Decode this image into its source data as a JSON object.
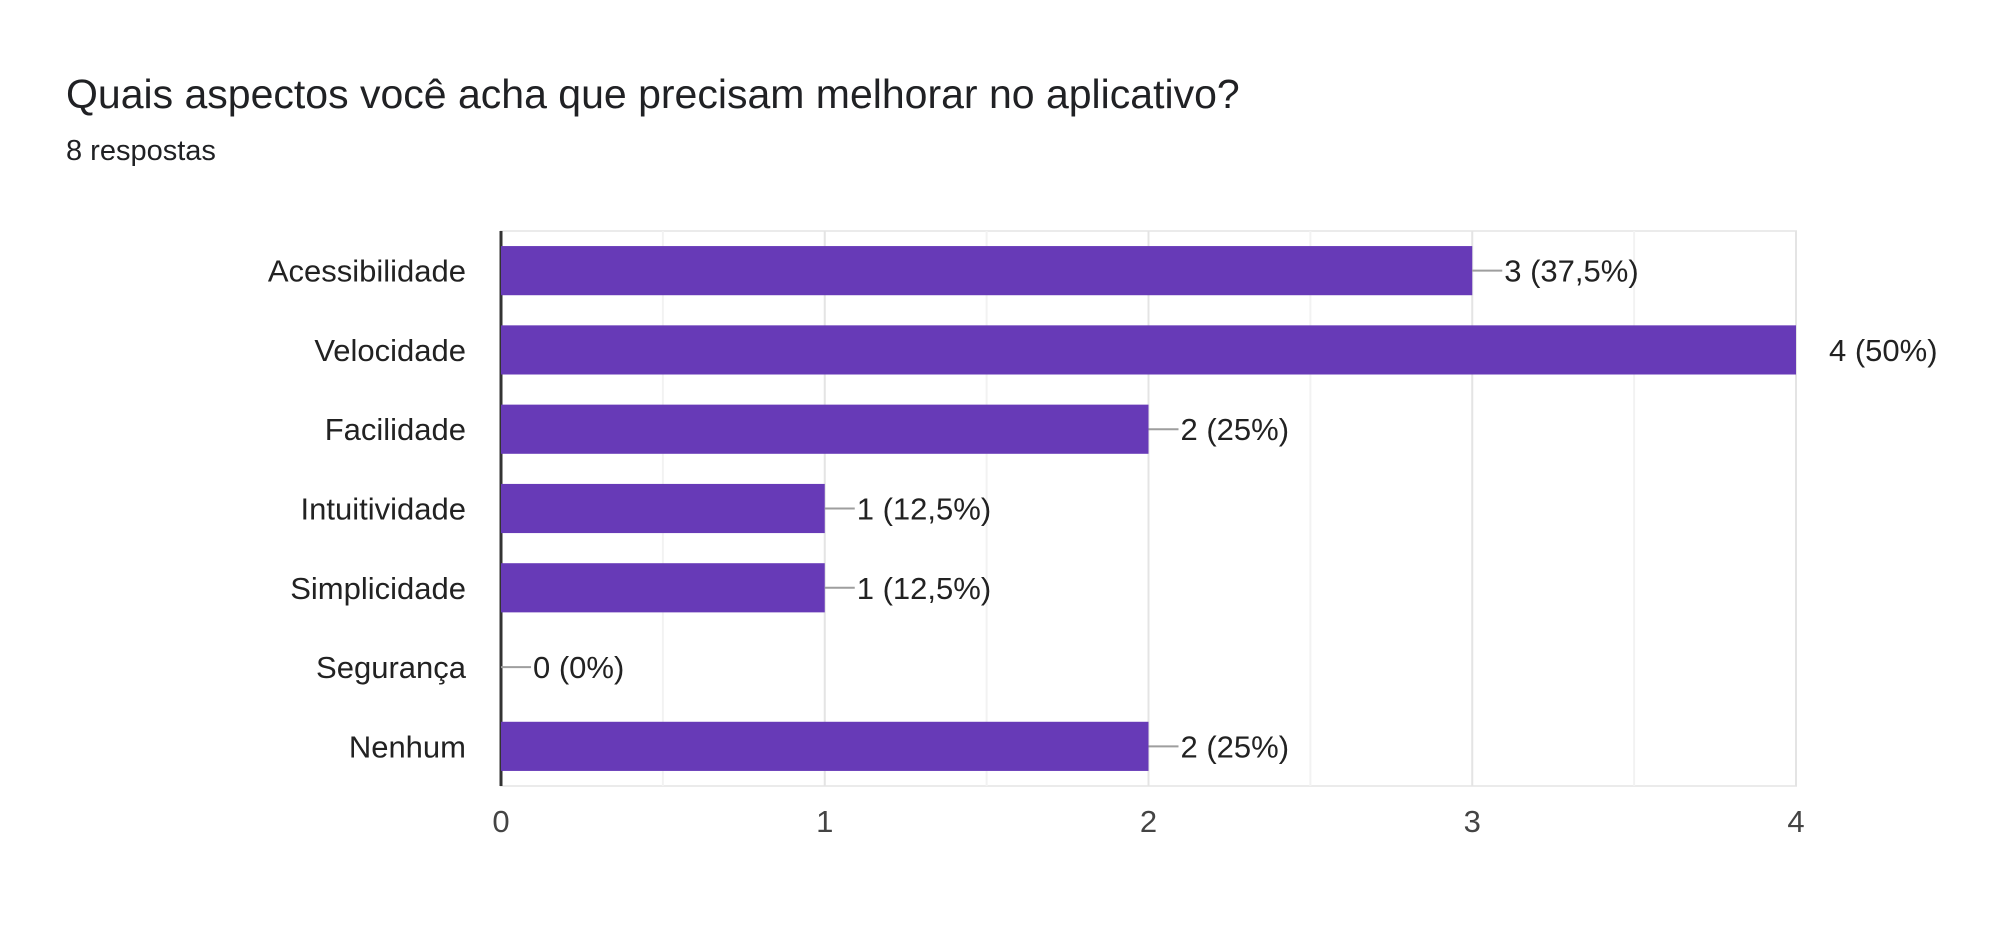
{
  "question": {
    "title": "Quais aspectos você acha que precisam melhorar no aplicativo?",
    "response_count": "8 respostas"
  },
  "colors": {
    "bar": "#673ab7",
    "grid": "#ebebeb",
    "axis": "#333333",
    "leader": "#9e9e9e"
  },
  "chart_data": {
    "type": "bar",
    "orientation": "horizontal",
    "categories": [
      "Acessibilidade",
      "Velocidade",
      "Facilidade",
      "Intuitividade",
      "Simplicidade",
      "Segurança",
      "Nenhum"
    ],
    "values": [
      3,
      4,
      2,
      1,
      1,
      0,
      2
    ],
    "data_labels": [
      "3 (37,5%)",
      "4 (50%)",
      "2 (25%)",
      "1 (12,5%)",
      "1 (12,5%)",
      "0 (0%)",
      "2 (25%)"
    ],
    "x_ticks": [
      "0",
      "1",
      "2",
      "3",
      "4"
    ],
    "xlim": [
      0,
      4
    ],
    "title": "",
    "xlabel": "",
    "ylabel": "",
    "grid": true,
    "legend": "none"
  }
}
